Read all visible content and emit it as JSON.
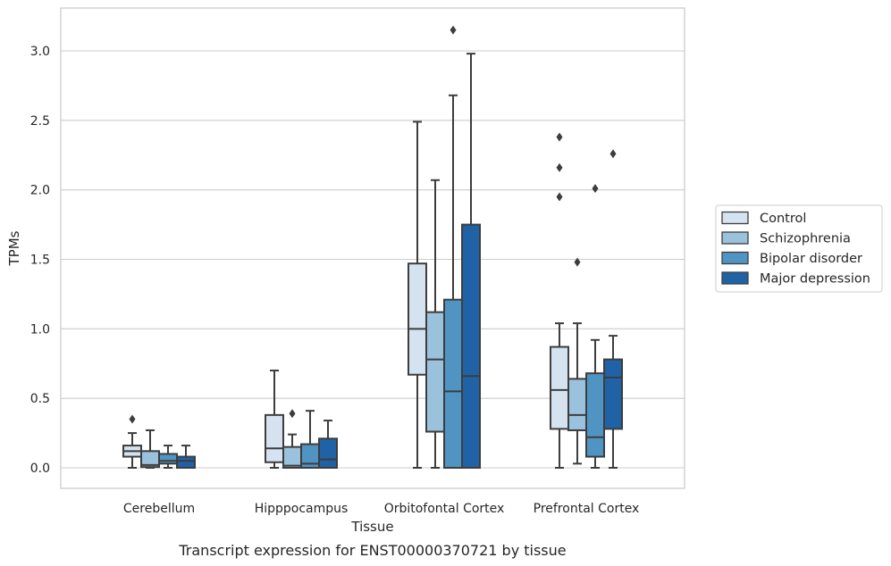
{
  "chart_data": {
    "type": "box",
    "xlabel": "Tissue",
    "ylabel": "TPMs",
    "caption": "Transcript expression for ENST00000370721 by tissue",
    "ylim": [
      -0.15,
      3.3
    ],
    "yticks": [
      0.0,
      0.5,
      1.0,
      1.5,
      2.0,
      2.5,
      3.0
    ],
    "ytick_labels": [
      "0.0",
      "0.5",
      "1.0",
      "1.5",
      "2.0",
      "2.5",
      "3.0"
    ],
    "grid": "horizontal",
    "legend_position": "right",
    "categories": [
      "Cerebellum",
      "Hipppocampus",
      "Orbitofontal Cortex",
      "Prefrontal Cortex"
    ],
    "series": [
      {
        "name": "Control",
        "color": "#d5e3f1",
        "boxes": [
          {
            "whislo": 0.0,
            "q1": 0.08,
            "med": 0.12,
            "q3": 0.16,
            "whishi": 0.25,
            "fliers": [
              0.35
            ]
          },
          {
            "whislo": 0.0,
            "q1": 0.04,
            "med": 0.14,
            "q3": 0.38,
            "whishi": 0.7,
            "fliers": []
          },
          {
            "whislo": 0.0,
            "q1": 0.67,
            "med": 1.0,
            "q3": 1.47,
            "whishi": 2.49,
            "fliers": []
          },
          {
            "whislo": 0.0,
            "q1": 0.28,
            "med": 0.56,
            "q3": 0.87,
            "whishi": 1.04,
            "fliers": [
              1.95,
              2.16,
              2.38
            ]
          }
        ]
      },
      {
        "name": "Schizophrenia",
        "color": "#9ac2dc",
        "boxes": [
          {
            "whislo": 0.0,
            "q1": 0.005,
            "med": 0.02,
            "q3": 0.12,
            "whishi": 0.27,
            "fliers": []
          },
          {
            "whislo": 0.0,
            "q1": 0.0,
            "med": 0.015,
            "q3": 0.15,
            "whishi": 0.24,
            "fliers": [
              0.39
            ]
          },
          {
            "whislo": 0.0,
            "q1": 0.26,
            "med": 0.78,
            "q3": 1.12,
            "whishi": 2.07,
            "fliers": []
          },
          {
            "whislo": 0.03,
            "q1": 0.27,
            "med": 0.38,
            "q3": 0.64,
            "whishi": 1.04,
            "fliers": [
              1.48
            ]
          }
        ]
      },
      {
        "name": "Bipolar disorder",
        "color": "#5094c4",
        "boxes": [
          {
            "whislo": 0.0,
            "q1": 0.03,
            "med": 0.05,
            "q3": 0.1,
            "whishi": 0.16,
            "fliers": []
          },
          {
            "whislo": 0.0,
            "q1": 0.0,
            "med": 0.03,
            "q3": 0.17,
            "whishi": 0.41,
            "fliers": []
          },
          {
            "whislo": 0.0,
            "q1": 0.0,
            "med": 0.55,
            "q3": 1.21,
            "whishi": 2.68,
            "fliers": [
              3.15
            ]
          },
          {
            "whislo": 0.0,
            "q1": 0.08,
            "med": 0.22,
            "q3": 0.68,
            "whishi": 0.92,
            "fliers": [
              2.01
            ]
          }
        ]
      },
      {
        "name": "Major depression",
        "color": "#2062a6",
        "boxes": [
          {
            "whislo": 0.0,
            "q1": 0.0,
            "med": 0.05,
            "q3": 0.08,
            "whishi": 0.16,
            "fliers": []
          },
          {
            "whislo": 0.0,
            "q1": 0.0,
            "med": 0.06,
            "q3": 0.21,
            "whishi": 0.34,
            "fliers": []
          },
          {
            "whislo": 0.0,
            "q1": 0.0,
            "med": 0.66,
            "q3": 1.75,
            "whishi": 2.98,
            "fliers": []
          },
          {
            "whislo": 0.0,
            "q1": 0.28,
            "med": 0.65,
            "q3": 0.78,
            "whishi": 0.95,
            "fliers": [
              2.26
            ]
          }
        ]
      }
    ]
  }
}
